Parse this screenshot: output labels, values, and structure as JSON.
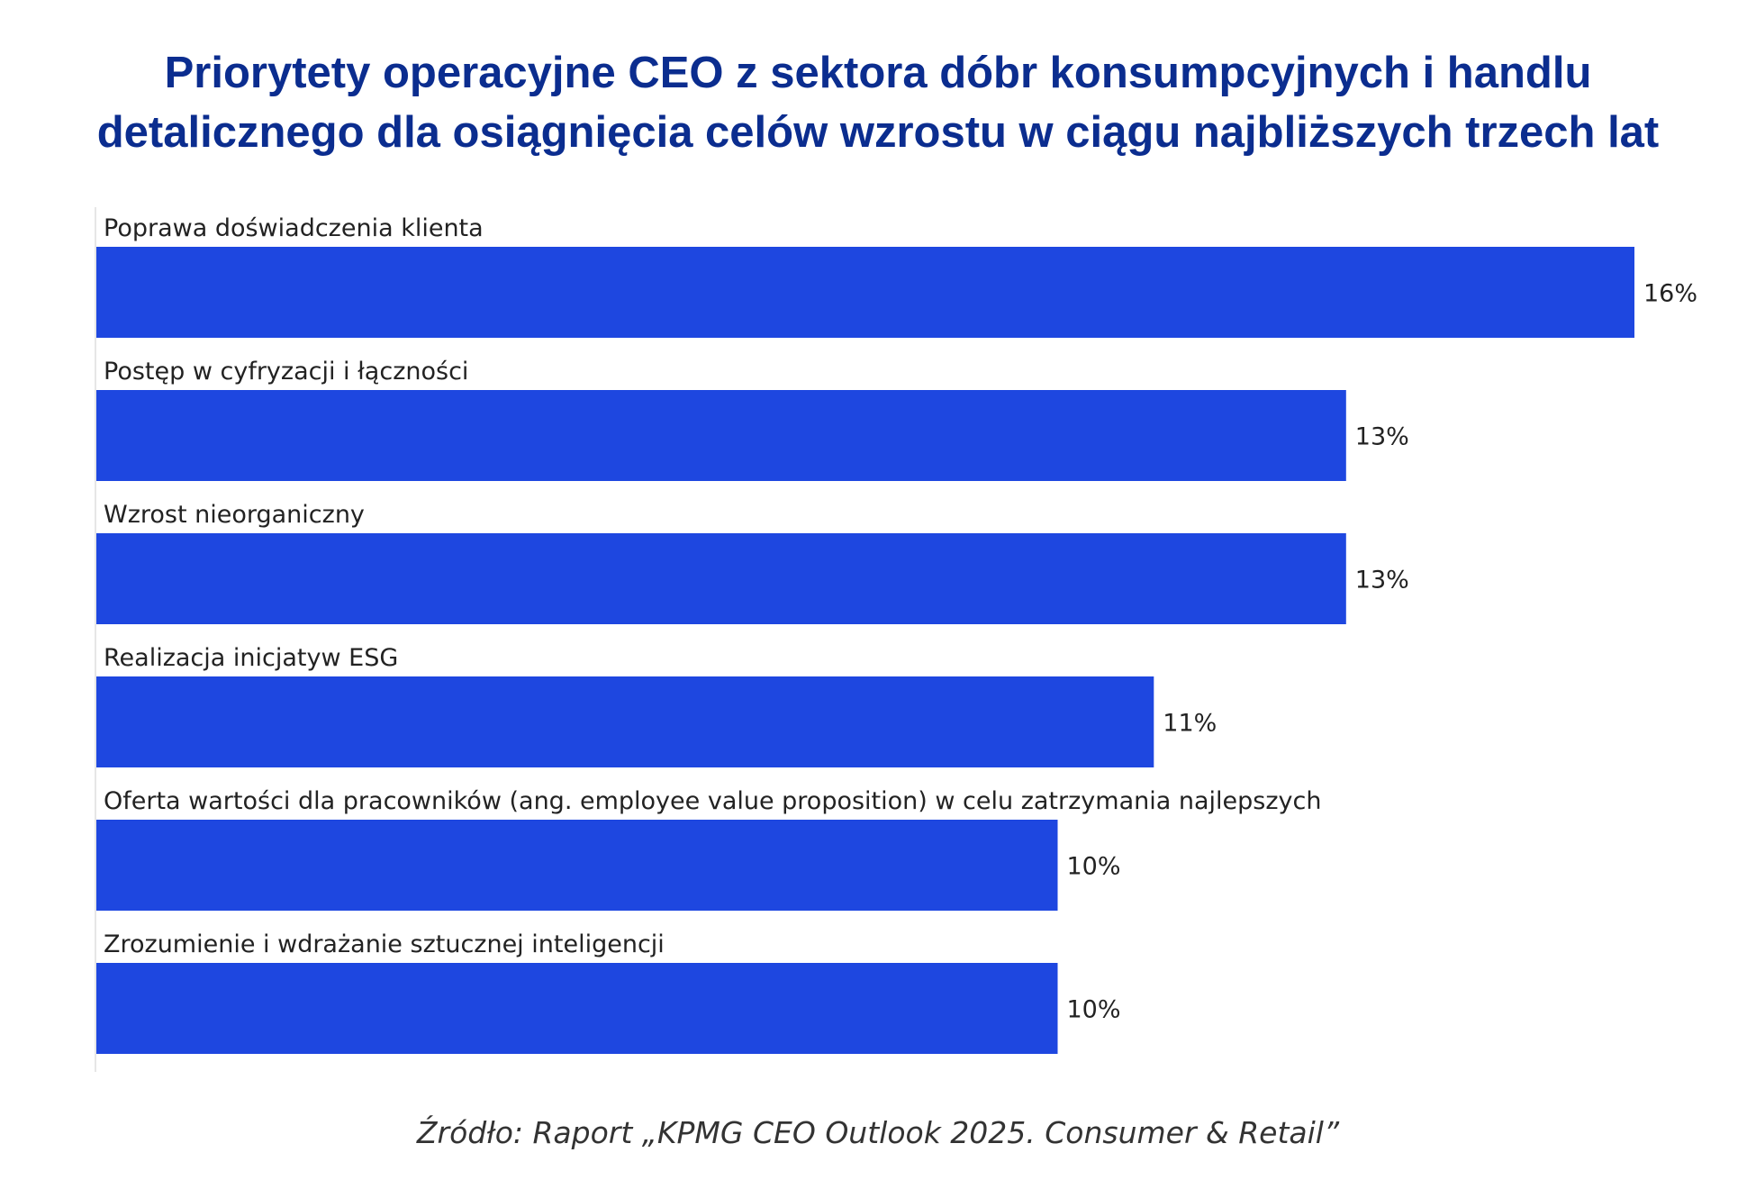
{
  "chart_data": {
    "type": "bar",
    "orientation": "horizontal",
    "title": [
      "Priorytety operacyjne CEO z sektora dóbr konsumpcyjnych i handlu",
      "detalicznego dla osiągnięcia celów wzrostu w ciągu najbliższych trzech lat"
    ],
    "categories": [
      "Poprawa doświadczenia klienta",
      "Postęp w cyfryzacji i łączności",
      "Wzrost nieorganiczny",
      "Realizacja inicjatyw ESG",
      "Oferta wartości dla pracowników (ang. employee value proposition) w celu zatrzymania najlepszych",
      "Zrozumienie i wdrażanie sztucznej inteligencji"
    ],
    "values": [
      16,
      13,
      13,
      11,
      10,
      10
    ],
    "value_labels": [
      "16%",
      "13%",
      "13%",
      "11%",
      "10%",
      "10%"
    ],
    "unit": "%",
    "xlim": [
      0,
      16
    ],
    "grid": false,
    "legend": "none",
    "bar_color": "#1e47e0",
    "source": "Źródło: Raport „KPMG CEO Outlook 2025. Consumer & Retail”"
  }
}
